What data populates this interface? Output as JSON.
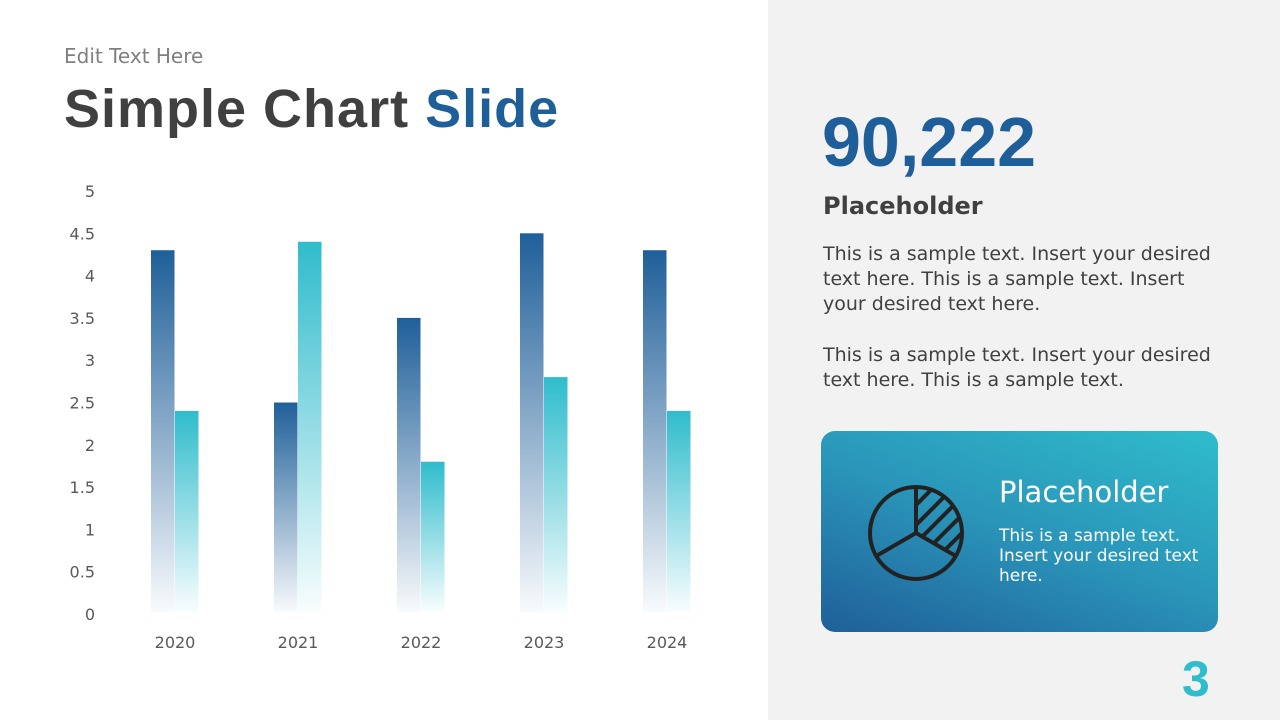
{
  "header": {
    "eyebrow": "Edit Text Here",
    "title_main": "Simple Chart",
    "title_accent": "Slide"
  },
  "sidebar": {
    "big_number": "90,222",
    "subtitle": "Placeholder",
    "paragraph_1": "This is a sample text. Insert your desired text here. This is a sample text. Insert your desired text here.",
    "paragraph_2": "This is a sample text. Insert your desired text here. This is a sample text.",
    "card": {
      "icon": "pie-chart-icon",
      "title": "Placeholder",
      "text": "This is a sample text. Insert your desired text here."
    },
    "page_number": "3"
  },
  "colors": {
    "blue": "#1f5f99",
    "cyan": "#2fbccc",
    "title_gray": "#404040"
  },
  "chart_data": {
    "type": "bar",
    "categories": [
      "2020",
      "2021",
      "2022",
      "2023",
      "2024"
    ],
    "series": [
      {
        "values": [
          4.3,
          2.5,
          3.5,
          4.5,
          4.3
        ],
        "color": "#1f5f99"
      },
      {
        "values": [
          2.4,
          4.4,
          1.8,
          2.8,
          2.4
        ],
        "color": "#2fbccc"
      }
    ],
    "ylim": [
      0,
      5
    ],
    "yticks": [
      "0",
      "0.5",
      "1",
      "1.5",
      "2",
      "2.5",
      "3",
      "3.5",
      "4",
      "4.5",
      "5"
    ],
    "grid": false,
    "legend": "none"
  }
}
